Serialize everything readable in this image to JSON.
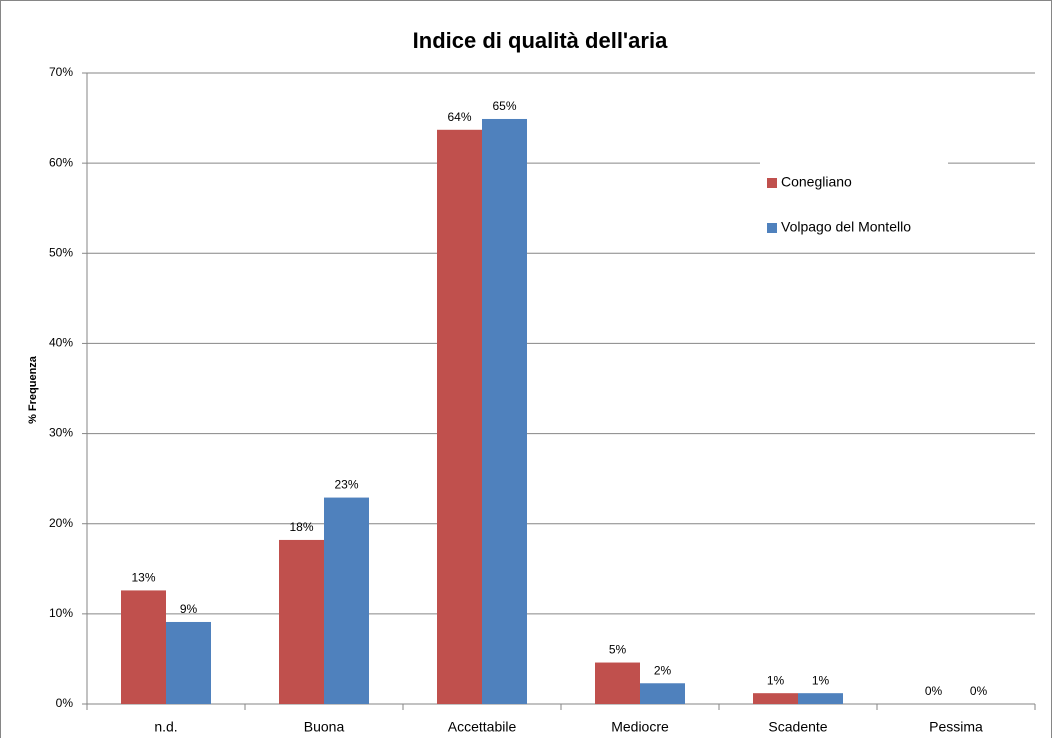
{
  "chart_data": {
    "type": "bar",
    "title": "Indice di qualità dell'aria",
    "y_label": "% Frequenza",
    "categories": [
      "n.d.",
      "Buona",
      "Accettabile",
      "Mediocre",
      "Scadente",
      "Pessima"
    ],
    "series": [
      {
        "name": "Conegliano",
        "color": "#c0504d",
        "values": [
          12.6,
          18.2,
          63.7,
          4.6,
          1.2,
          0
        ],
        "value_labels": [
          "13%",
          "18%",
          "64%",
          "5%",
          "1%",
          "0%"
        ]
      },
      {
        "name": "Volpago del Montello",
        "color": "#4f81bd",
        "values": [
          9.1,
          22.9,
          64.9,
          2.3,
          1.2,
          0
        ],
        "value_labels": [
          "9%",
          "23%",
          "65%",
          "2%",
          "1%",
          "0%"
        ]
      }
    ],
    "ylim": [
      0,
      70
    ],
    "yticks": [
      {
        "value": 0,
        "label": "0%"
      },
      {
        "value": 10,
        "label": "10%"
      },
      {
        "value": 20,
        "label": "20%"
      },
      {
        "value": 30,
        "label": "30%"
      },
      {
        "value": 40,
        "label": "40%"
      },
      {
        "value": 50,
        "label": "50%"
      },
      {
        "value": 60,
        "label": "60%"
      },
      {
        "value": 70,
        "label": "70%"
      }
    ],
    "grid": true,
    "legend": "upper right"
  }
}
